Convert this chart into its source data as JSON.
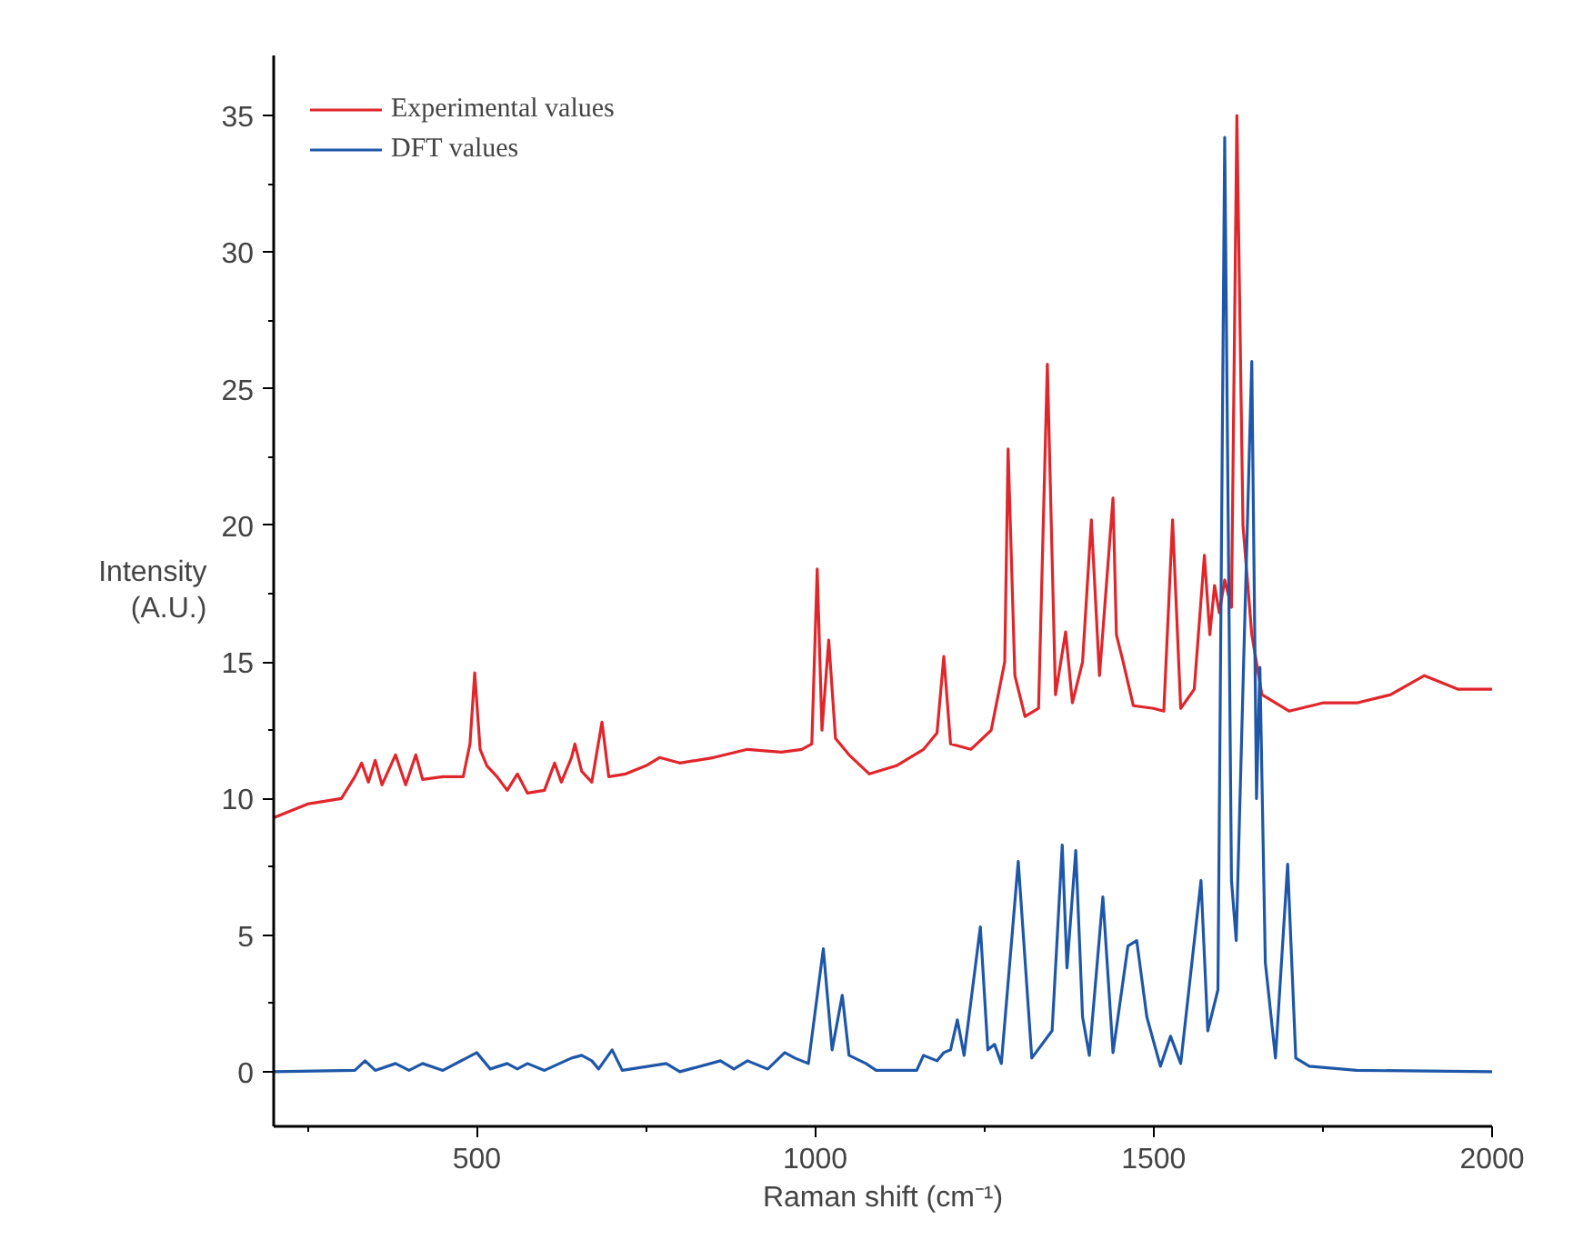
{
  "chart_data": {
    "type": "line",
    "xlabel": "Raman shift (cm⁻¹)",
    "ylabel": "Intensity\n(A.U.)",
    "legend": "top left",
    "grid": false,
    "marker": "none",
    "line_style": "solid",
    "xlim": [
      200,
      2000
    ],
    "ylim": [
      -2,
      37.2
    ],
    "xticks": [
      {
        "value": 250,
        "label": null
      },
      500,
      {
        "value": 750,
        "label": null
      },
      1000,
      {
        "value": 1250,
        "label": null
      },
      1500,
      {
        "value": 1750,
        "label": null
      },
      2000
    ],
    "yticks": [
      0,
      {
        "value": 2.5,
        "label": null
      },
      5,
      {
        "value": 7.5,
        "label": null
      },
      10,
      {
        "value": 12.5,
        "label": null
      },
      15,
      {
        "value": 17.5,
        "label": null
      },
      20,
      {
        "value": 22.5,
        "label": null
      },
      25,
      {
        "value": 27.5,
        "label": null
      },
      30,
      {
        "value": 32.5,
        "label": null
      },
      35
    ],
    "series": [
      {
        "name": "Experimental values",
        "color": "#e0262b",
        "x": [
          200,
          250,
          300,
          320,
          330,
          340,
          350,
          360,
          380,
          395,
          410,
          420,
          450,
          480,
          490,
          497,
          505,
          515,
          530,
          545,
          560,
          575,
          600,
          615,
          625,
          640,
          645,
          655,
          670,
          685,
          695,
          720,
          750,
          770,
          800,
          850,
          900,
          950,
          980,
          995,
          1003,
          1010,
          1020,
          1030,
          1050,
          1080,
          1120,
          1160,
          1180,
          1190,
          1200,
          1230,
          1260,
          1280,
          1285,
          1295,
          1310,
          1330,
          1343,
          1355,
          1370,
          1380,
          1395,
          1408,
          1420,
          1440,
          1445,
          1455,
          1470,
          1500,
          1515,
          1528,
          1540,
          1560,
          1575,
          1583,
          1590,
          1597,
          1605,
          1615,
          1623,
          1632,
          1645,
          1660,
          1700,
          1750,
          1800,
          1850,
          1900,
          1950,
          2000
        ],
        "values": [
          9.3,
          9.8,
          10.0,
          10.8,
          11.3,
          10.6,
          11.4,
          10.5,
          11.6,
          10.5,
          11.6,
          10.7,
          10.8,
          10.8,
          12,
          14.6,
          11.8,
          11.2,
          10.8,
          10.3,
          10.9,
          10.2,
          10.3,
          11.3,
          10.6,
          11.5,
          12.0,
          11.0,
          10.6,
          12.8,
          10.8,
          10.9,
          11.2,
          11.5,
          11.3,
          11.5,
          11.8,
          11.7,
          11.8,
          12.0,
          18.4,
          12.5,
          15.8,
          12.2,
          11.6,
          10.9,
          11.2,
          11.8,
          12.4,
          15.2,
          12.0,
          11.8,
          12.5,
          15,
          22.8,
          14.5,
          13.0,
          13.3,
          25.9,
          13.8,
          16.1,
          13.5,
          15,
          20.2,
          14.5,
          21.0,
          16,
          15,
          13.4,
          13.3,
          13.2,
          20.2,
          13.3,
          14,
          18.9,
          16,
          17.8,
          16.8,
          18,
          17.0,
          35.0,
          20,
          16,
          13.8,
          13.2,
          13.5,
          13.5,
          13.8,
          14.5,
          14.0,
          14.0
        ]
      },
      {
        "name": "DFT values",
        "color": "#1f57a8",
        "x": [
          200,
          320,
          335,
          350,
          380,
          400,
          420,
          450,
          500,
          520,
          545,
          560,
          575,
          600,
          640,
          655,
          670,
          680,
          700,
          715,
          780,
          800,
          860,
          880,
          900,
          930,
          955,
          970,
          990,
          1012,
          1025,
          1040,
          1050,
          1075,
          1090,
          1150,
          1160,
          1180,
          1190,
          1200,
          1210,
          1220,
          1244,
          1255,
          1265,
          1275,
          1300,
          1320,
          1350,
          1365,
          1372,
          1385,
          1395,
          1405,
          1425,
          1440,
          1462,
          1475,
          1490,
          1510,
          1525,
          1540,
          1570,
          1580,
          1595,
          1605,
          1615,
          1622,
          1633,
          1645,
          1652,
          1657,
          1665,
          1680,
          1698,
          1710,
          1730,
          1800,
          2000
        ],
        "values": [
          0,
          0.05,
          0.4,
          0.05,
          0.3,
          0.05,
          0.3,
          0.05,
          0.7,
          0.1,
          0.3,
          0.1,
          0.3,
          0.05,
          0.5,
          0.6,
          0.4,
          0.1,
          0.8,
          0.05,
          0.3,
          0.0,
          0.4,
          0.1,
          0.4,
          0.1,
          0.7,
          0.5,
          0.3,
          4.5,
          0.8,
          2.8,
          0.6,
          0.3,
          0.05,
          0.05,
          0.6,
          0.4,
          0.7,
          0.8,
          1.9,
          0.6,
          5.3,
          0.8,
          1.0,
          0.3,
          7.7,
          0.5,
          1.5,
          8.3,
          3.8,
          8.1,
          2,
          0.6,
          6.4,
          0.7,
          4.6,
          4.8,
          2,
          0.2,
          1.3,
          0.3,
          7.0,
          1.5,
          3,
          34.2,
          7,
          4.8,
          15,
          26,
          10,
          14.8,
          4,
          0.5,
          7.6,
          0.5,
          0.2,
          0.05,
          0
        ]
      }
    ]
  }
}
